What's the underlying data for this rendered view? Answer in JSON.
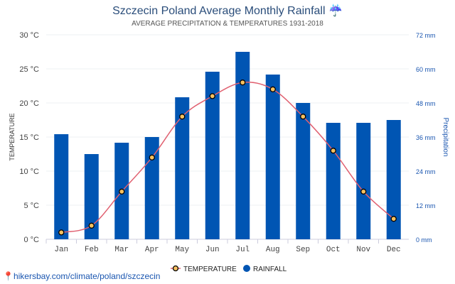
{
  "title": "Szczecin Poland Average Monthly Rainfall",
  "title_icon": "umbrella-rain-icon",
  "subtitle": "AVERAGE PRECIPITATION & TEMPERATURES 1931-2018",
  "footer_link": "hikersbay.com/climate/poland/szczecin",
  "colors": {
    "bar": "#0055b3",
    "line": "#e06070",
    "marker": "#f5c060",
    "title": "#2a4d7a"
  },
  "chart_data": {
    "type": "bar",
    "categories": [
      "Jan",
      "Feb",
      "Mar",
      "Apr",
      "May",
      "Jun",
      "Jul",
      "Aug",
      "Sep",
      "Oct",
      "Nov",
      "Dec"
    ],
    "series": [
      {
        "name": "RAINFALL",
        "type": "bar",
        "axis": "right",
        "unit": "mm",
        "values": [
          37,
          30,
          34,
          36,
          50,
          59,
          66,
          58,
          48,
          41,
          41,
          42
        ]
      },
      {
        "name": "TEMPERATURE",
        "type": "line",
        "axis": "left",
        "unit": "°C",
        "values": [
          1,
          2,
          7,
          12,
          18,
          21,
          23,
          22,
          18,
          13,
          7,
          3
        ]
      }
    ],
    "y_left": {
      "label": "TEMPERATURE",
      "range": [
        0,
        30
      ],
      "ticks": [
        "0 °C",
        "5 °C",
        "10 °C",
        "15 °C",
        "20 °C",
        "25 °C",
        "30 °C"
      ]
    },
    "y_right": {
      "label": "Precipitation",
      "range": [
        0,
        72
      ],
      "ticks": [
        "0 mm",
        "12 mm",
        "24 mm",
        "36 mm",
        "48 mm",
        "60 mm",
        "72 mm"
      ]
    },
    "grid": true,
    "legend": "bottom"
  }
}
